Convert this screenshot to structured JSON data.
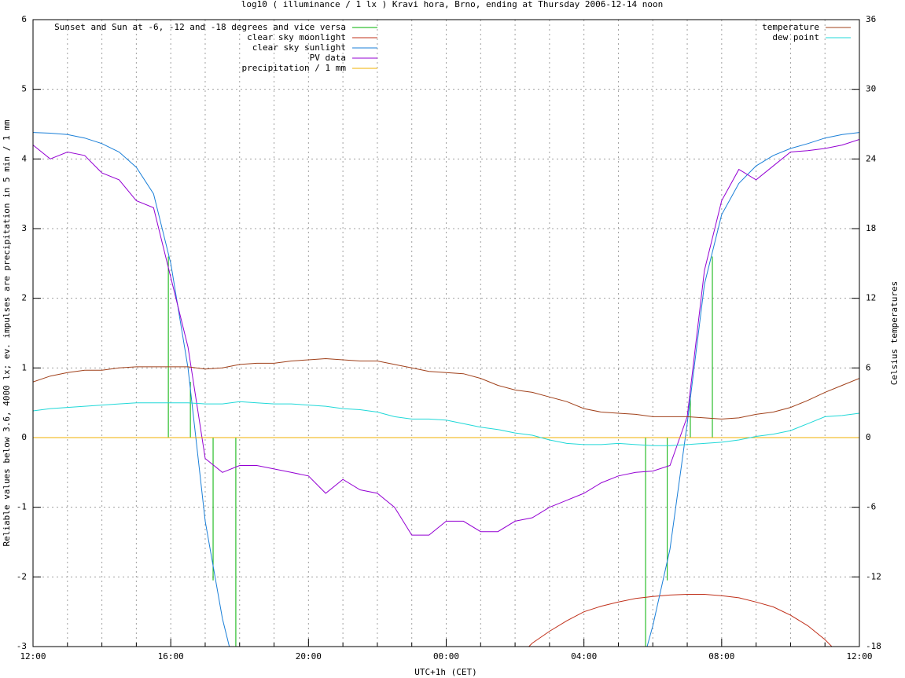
{
  "chart_data": {
    "type": "line",
    "title": "log10 ( illuminance / 1 lx ) Kravi hora, Brno, ending at Thursday 2006-12-14 noon",
    "xlabel": "UTC+1h (CET)",
    "ylabel": "Reliable values below 3.6, 4000 lx; ev. impulses are precipitation in 5 min / 1 mm",
    "y2label": "Celsius temperatures",
    "xlim": [
      0,
      24
    ],
    "ylim": [
      -3,
      6
    ],
    "y2lim": [
      -18,
      36
    ],
    "xticks": [
      {
        "value": 0,
        "label": "12:00"
      },
      {
        "value": 4,
        "label": "16:00"
      },
      {
        "value": 8,
        "label": "20:00"
      },
      {
        "value": 12,
        "label": "00:00"
      },
      {
        "value": 16,
        "label": "04:00"
      },
      {
        "value": 20,
        "label": "08:00"
      },
      {
        "value": 24,
        "label": "12:00"
      }
    ],
    "xminorticks": [
      1,
      2,
      3,
      5,
      6,
      7,
      9,
      10,
      11,
      13,
      14,
      15,
      17,
      18,
      19,
      21,
      22,
      23
    ],
    "yticks": [
      -3,
      -2,
      -1,
      0,
      1,
      2,
      3,
      4,
      5,
      6
    ],
    "y2ticks": [
      -18,
      -12,
      -6,
      0,
      6,
      12,
      18,
      24,
      30,
      36
    ],
    "grid": true,
    "x": [
      0,
      0.5,
      1,
      1.5,
      2,
      2.5,
      3,
      3.5,
      4,
      4.5,
      5,
      5.5,
      6,
      6.5,
      7,
      7.5,
      8,
      8.5,
      9,
      9.5,
      10,
      10.5,
      11,
      11.5,
      12,
      12.5,
      13,
      13.5,
      14,
      14.5,
      15,
      15.5,
      16,
      16.5,
      17,
      17.5,
      18,
      18.5,
      19,
      19.5,
      20,
      20.5,
      21,
      21.5,
      22,
      22.5,
      23,
      23.5,
      24
    ],
    "series": [
      {
        "name": "Sunset and Sun at -6, -12 and -18 degrees and vice versa",
        "color": "#00b000",
        "style": "impulses",
        "x": [
          3.93,
          4.57,
          5.23,
          5.89,
          17.79,
          18.42,
          19.09,
          19.73
        ],
        "values": [
          2.6,
          0.8,
          -2.05,
          -3,
          -3,
          -2.05,
          0.6,
          2.6
        ]
      },
      {
        "name": "clear sky moonlight",
        "color": "#c0301a",
        "values": [
          null,
          null,
          null,
          null,
          null,
          null,
          null,
          null,
          null,
          null,
          null,
          null,
          null,
          null,
          null,
          null,
          null,
          null,
          null,
          null,
          null,
          null,
          null,
          null,
          null,
          null,
          null,
          null,
          -3.2,
          -2.95,
          -2.78,
          -2.63,
          -2.5,
          -2.42,
          -2.36,
          -2.31,
          -2.28,
          -2.26,
          -2.25,
          -2.25,
          -2.27,
          -2.3,
          -2.36,
          -2.43,
          -2.55,
          -2.7,
          -2.9,
          -3.15,
          null
        ]
      },
      {
        "name": "clear sky sunlight",
        "color": "#1a7fd8",
        "values": [
          4.38,
          4.37,
          4.35,
          4.3,
          4.22,
          4.1,
          3.88,
          3.5,
          2.5,
          1.0,
          -1.2,
          -2.6,
          -3.6,
          null,
          null,
          null,
          null,
          null,
          null,
          null,
          null,
          null,
          null,
          null,
          null,
          null,
          null,
          null,
          null,
          null,
          null,
          null,
          null,
          null,
          null,
          -3.6,
          -2.7,
          -1.6,
          0.2,
          2.2,
          3.2,
          3.65,
          3.9,
          4.05,
          4.15,
          4.22,
          4.3,
          4.35,
          4.38
        ]
      },
      {
        "name": "PV data",
        "color": "#9400d3",
        "values": [
          4.2,
          4.0,
          4.1,
          4.05,
          3.8,
          3.7,
          3.4,
          3.3,
          2.3,
          1.3,
          -0.3,
          -0.5,
          -0.4,
          -0.4,
          -0.45,
          -0.5,
          -0.55,
          -0.8,
          -0.6,
          -0.75,
          -0.8,
          -1.0,
          -1.4,
          -1.4,
          -1.2,
          -1.2,
          -1.35,
          -1.35,
          -1.2,
          -1.15,
          -1.0,
          -0.9,
          -0.8,
          -0.65,
          -0.55,
          -0.5,
          -0.48,
          -0.4,
          0.3,
          2.4,
          3.4,
          3.85,
          3.7,
          3.9,
          4.1,
          4.12,
          4.15,
          4.2,
          4.28
        ]
      },
      {
        "name": "precipitation / 1 mm",
        "color": "#f0b000",
        "x": [
          0,
          24
        ],
        "values": [
          0,
          0
        ]
      },
      {
        "name": "temperature",
        "color": "#a0401a",
        "axis": "y2",
        "values": [
          4.8,
          5.3,
          5.6,
          5.8,
          5.8,
          6.0,
          6.1,
          6.1,
          6.1,
          6.1,
          5.9,
          6.0,
          6.3,
          6.4,
          6.4,
          6.6,
          6.7,
          6.8,
          6.7,
          6.6,
          6.6,
          6.3,
          6.0,
          5.7,
          5.6,
          5.5,
          5.1,
          4.5,
          4.1,
          3.9,
          3.5,
          3.1,
          2.5,
          2.2,
          2.1,
          2.0,
          1.8,
          1.8,
          1.8,
          1.7,
          1.6,
          1.7,
          2.0,
          2.2,
          2.6,
          3.2,
          3.9,
          4.5,
          5.1
        ]
      },
      {
        "name": "dew point",
        "color": "#20d8d8",
        "axis": "y2",
        "values": [
          2.3,
          2.5,
          2.6,
          2.7,
          2.8,
          2.9,
          3.0,
          3.0,
          3.0,
          3.0,
          2.9,
          2.9,
          3.1,
          3.0,
          2.9,
          2.9,
          2.8,
          2.7,
          2.5,
          2.4,
          2.2,
          1.8,
          1.6,
          1.6,
          1.5,
          1.2,
          0.9,
          0.7,
          0.4,
          0.2,
          -0.2,
          -0.5,
          -0.6,
          -0.6,
          -0.5,
          -0.6,
          -0.7,
          -0.7,
          -0.6,
          -0.5,
          -0.4,
          -0.2,
          0.1,
          0.3,
          0.6,
          1.2,
          1.8,
          1.9,
          2.1
        ]
      }
    ]
  }
}
